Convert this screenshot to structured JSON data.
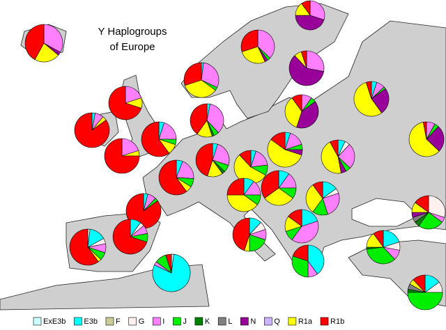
{
  "title_lines": [
    "Y Haplogroups",
    "of Europe"
  ],
  "legend": {
    "names": [
      "ExE3b",
      "E3b",
      "F",
      "G",
      "I",
      "J",
      "K",
      "L",
      "N",
      "Q",
      "R1a",
      "R1b"
    ],
    "colors": [
      "#ccffff",
      "#00ffff",
      "#cccc99",
      "#fff0f0",
      "#ff80ff",
      "#00ee00",
      "#008000",
      "#808080",
      "#990099",
      "#ccb3ff",
      "#ffff00",
      "#ff0000"
    ]
  },
  "pies": [
    [
      0,
      0,
      0,
      0,
      33,
      0,
      0,
      0,
      3,
      0,
      22,
      42
    ],
    [
      0,
      0,
      0,
      0,
      37,
      3,
      0,
      0,
      3,
      0,
      27,
      30
    ],
    [
      0,
      0,
      0,
      0,
      30,
      0,
      0,
      0,
      45,
      0,
      15,
      10
    ],
    [
      0,
      0,
      0,
      0,
      28,
      0,
      0,
      0,
      60,
      0,
      7,
      5
    ],
    [
      0,
      2,
      0,
      0,
      30,
      3,
      0,
      0,
      0,
      0,
      35,
      30
    ],
    [
      0,
      0,
      0,
      0,
      20,
      0,
      0,
      0,
      0,
      0,
      10,
      70
    ],
    [
      0,
      3,
      0,
      0,
      8,
      0,
      0,
      0,
      0,
      0,
      4,
      85
    ],
    [
      0,
      0,
      0,
      0,
      20,
      0,
      0,
      0,
      0,
      0,
      5,
      75
    ],
    [
      0,
      5,
      0,
      0,
      20,
      5,
      0,
      0,
      0,
      0,
      10,
      60
    ],
    [
      0,
      3,
      0,
      0,
      35,
      5,
      2,
      0,
      0,
      0,
      15,
      40
    ],
    [
      0,
      6,
      0,
      0,
      20,
      8,
      0,
      0,
      0,
      0,
      6,
      60
    ],
    [
      0,
      5,
      0,
      0,
      25,
      7,
      3,
      0,
      0,
      0,
      15,
      45
    ],
    [
      0,
      5,
      0,
      0,
      18,
      10,
      0,
      0,
      0,
      0,
      55,
      12
    ],
    [
      0,
      5,
      0,
      0,
      15,
      5,
      0,
      0,
      5,
      0,
      55,
      15
    ],
    [
      0,
      0,
      0,
      0,
      10,
      5,
      0,
      0,
      40,
      0,
      35,
      10
    ],
    [
      0,
      5,
      0,
      0,
      8,
      2,
      0,
      0,
      25,
      0,
      55,
      5
    ],
    [
      0,
      0,
      0,
      0,
      8,
      4,
      0,
      0,
      25,
      0,
      60,
      3
    ],
    [
      0,
      7,
      0,
      5,
      25,
      5,
      0,
      0,
      5,
      0,
      45,
      8
    ],
    [
      0,
      10,
      0,
      0,
      15,
      10,
      0,
      0,
      0,
      0,
      40,
      25
    ],
    [
      0,
      10,
      0,
      0,
      15,
      10,
      0,
      0,
      0,
      0,
      30,
      35
    ],
    [
      0,
      15,
      0,
      5,
      25,
      15,
      0,
      0,
      0,
      0,
      30,
      10
    ],
    [
      0,
      20,
      0,
      0,
      40,
      10,
      0,
      0,
      0,
      0,
      15,
      15
    ],
    [
      0,
      12,
      0,
      8,
      10,
      20,
      0,
      0,
      0,
      0,
      5,
      45
    ],
    [
      0,
      4,
      0,
      0,
      8,
      3,
      0,
      0,
      0,
      0,
      0,
      85
    ],
    [
      2,
      15,
      0,
      5,
      8,
      7,
      0,
      0,
      0,
      0,
      3,
      60
    ],
    [
      0,
      10,
      0,
      4,
      8,
      8,
      0,
      0,
      0,
      0,
      0,
      70
    ],
    [
      2,
      80,
      0,
      0,
      3,
      10,
      0,
      0,
      0,
      0,
      0,
      5
    ],
    [
      0,
      40,
      0,
      0,
      10,
      30,
      0,
      0,
      0,
      0,
      0,
      20
    ],
    [
      0,
      20,
      0,
      8,
      10,
      35,
      2,
      0,
      0,
      0,
      15,
      10
    ],
    [
      0,
      0,
      0,
      30,
      5,
      25,
      5,
      5,
      5,
      0,
      10,
      15
    ],
    [
      0,
      15,
      0,
      10,
      0,
      50,
      3,
      5,
      0,
      0,
      5,
      12
    ]
  ]
}
